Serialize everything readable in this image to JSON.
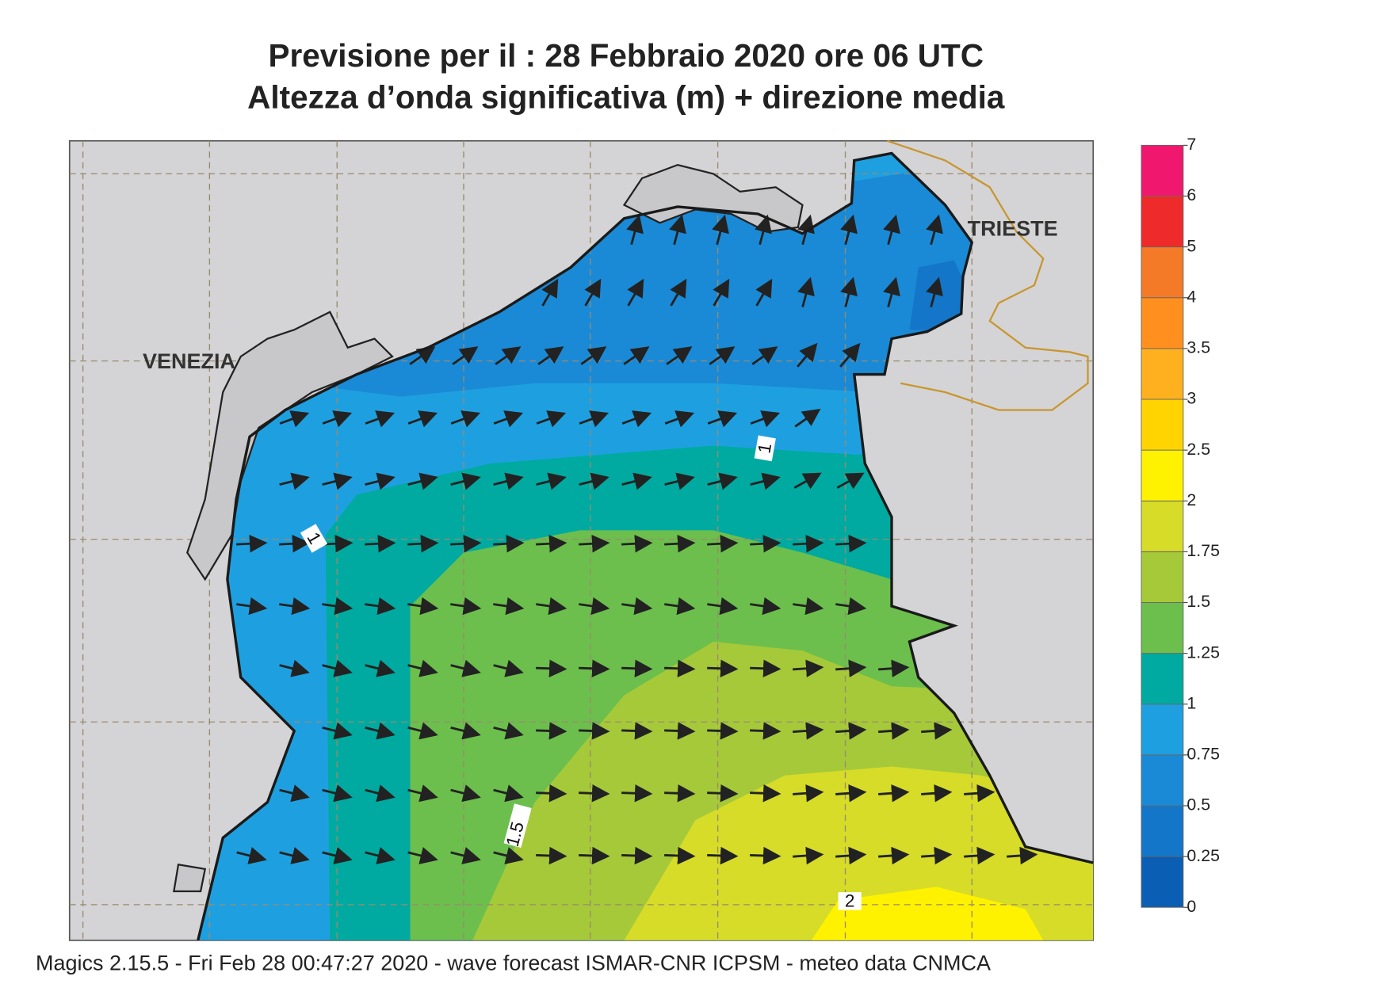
{
  "header": {
    "title": "Previsione per il  :  28  Febbraio 2020   ore 06 UTC",
    "subtitle": "Altezza d’onda significativa (m) + direzione media"
  },
  "map": {
    "places": [
      "VENEZIA",
      "TRIESTE"
    ],
    "contour_labels": [
      1,
      1,
      1.5,
      2
    ]
  },
  "legend": {
    "levels": [
      0,
      0.25,
      0.5,
      0.75,
      1,
      1.25,
      1.5,
      1.75,
      2,
      2.5,
      3,
      3.5,
      4,
      5,
      6,
      7
    ],
    "colors": [
      "#0a5fb4",
      "#1476c8",
      "#1a8ad6",
      "#1ea0e0",
      "#00aaa0",
      "#6cbf4c",
      "#a6c93a",
      "#d6dc28",
      "#fff200",
      "#ffd400",
      "#ffb01e",
      "#ff9020",
      "#f57a28",
      "#ee2a2a",
      "#f0186e"
    ]
  },
  "footer": "Magics 2.15.5 - Fri Feb 28 00:47:27 2020 - wave forecast  ISMAR-CNR  ICPSM - meteo data   CNMCA"
}
